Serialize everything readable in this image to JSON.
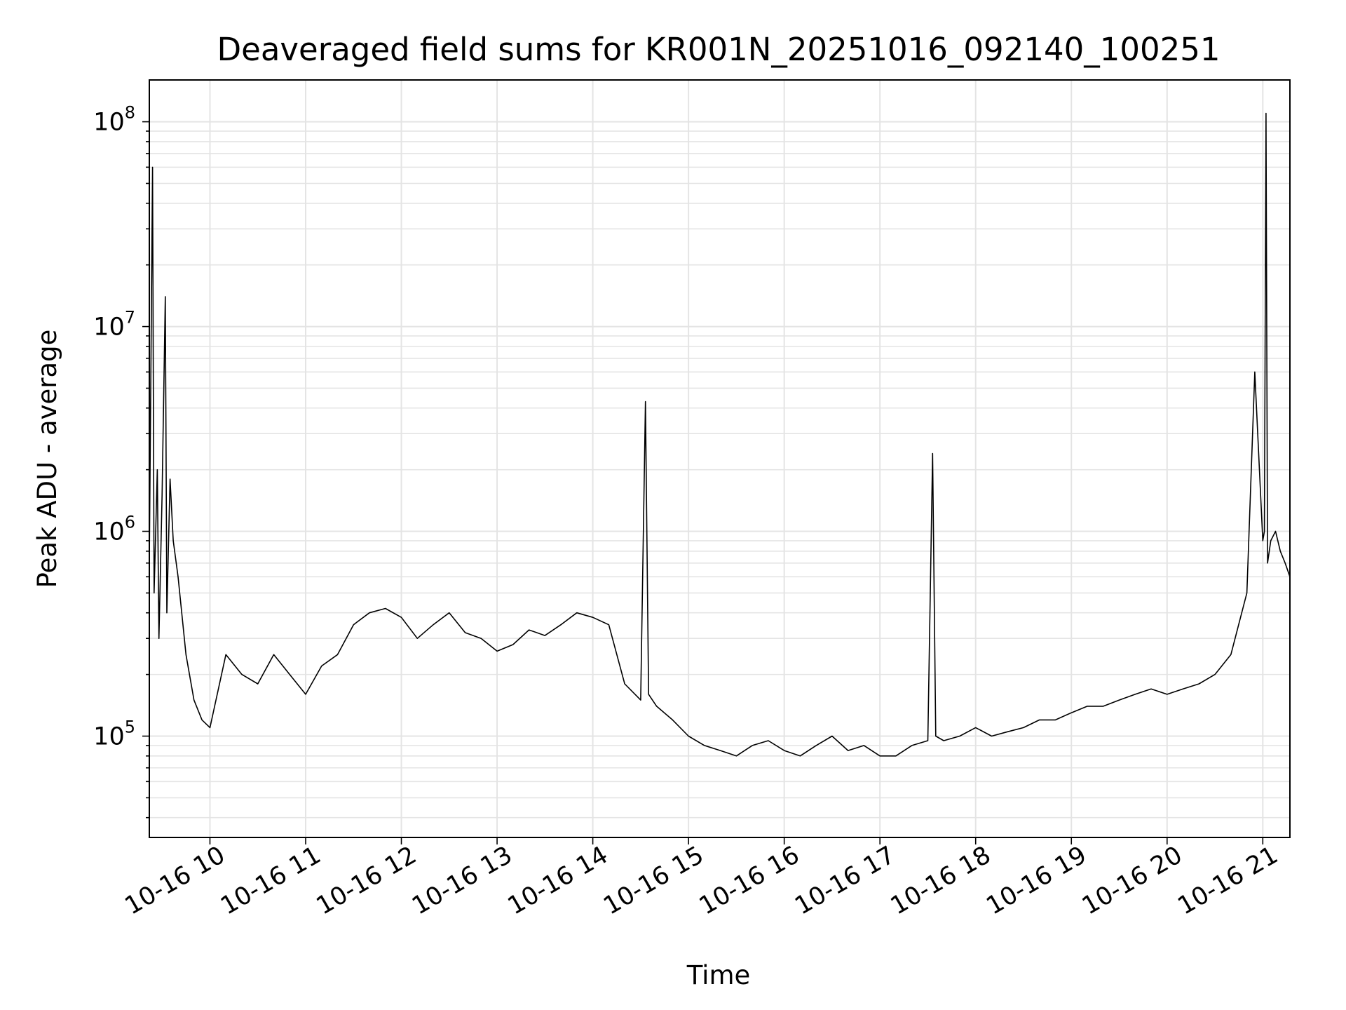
{
  "chart_data": {
    "type": "line",
    "title": "Deaveraged field sums for KR001N_20251016_092140_100251",
    "xlabel": "Time",
    "ylabel": "Peak ADU - average",
    "yscale": "log",
    "ylim": [
      32000,
      160000000
    ],
    "xlim": [
      "10-16 09:22",
      "10-16 21:17"
    ],
    "grid": true,
    "line_color": "#000000",
    "x_ticks": [
      "10-16 10",
      "10-16 11",
      "10-16 12",
      "10-16 13",
      "10-16 14",
      "10-16 15",
      "10-16 16",
      "10-16 17",
      "10-16 18",
      "10-16 19",
      "10-16 20",
      "10-16 21"
    ],
    "y_ticks": [
      {
        "base": "10",
        "exp": "5"
      },
      {
        "base": "10",
        "exp": "6"
      },
      {
        "base": "10",
        "exp": "7"
      },
      {
        "base": "10",
        "exp": "8"
      }
    ],
    "series": [
      {
        "x": [
          "10-16 09:22",
          "10-16 09:24",
          "10-16 09:25",
          "10-16 09:27",
          "10-16 09:28",
          "10-16 09:30",
          "10-16 09:32",
          "10-16 09:33",
          "10-16 09:35",
          "10-16 09:37",
          "10-16 09:40",
          "10-16 09:45",
          "10-16 09:50",
          "10-16 09:55",
          "10-16 10:00",
          "10-16 10:10",
          "10-16 10:20",
          "10-16 10:30",
          "10-16 10:40",
          "10-16 10:50",
          "10-16 11:00",
          "10-16 11:10",
          "10-16 11:20",
          "10-16 11:30",
          "10-16 11:40",
          "10-16 11:50",
          "10-16 12:00",
          "10-16 12:10",
          "10-16 12:20",
          "10-16 12:30",
          "10-16 12:40",
          "10-16 12:50",
          "10-16 13:00",
          "10-16 13:10",
          "10-16 13:20",
          "10-16 13:30",
          "10-16 13:40",
          "10-16 13:50",
          "10-16 14:00",
          "10-16 14:10",
          "10-16 14:20",
          "10-16 14:30",
          "10-16 14:33",
          "10-16 14:35",
          "10-16 14:40",
          "10-16 14:50",
          "10-16 15:00",
          "10-16 15:10",
          "10-16 15:20",
          "10-16 15:30",
          "10-16 15:40",
          "10-16 15:50",
          "10-16 16:00",
          "10-16 16:10",
          "10-16 16:20",
          "10-16 16:30",
          "10-16 16:40",
          "10-16 16:50",
          "10-16 17:00",
          "10-16 17:10",
          "10-16 17:20",
          "10-16 17:30",
          "10-16 17:33",
          "10-16 17:35",
          "10-16 17:40",
          "10-16 17:50",
          "10-16 18:00",
          "10-16 18:10",
          "10-16 18:20",
          "10-16 18:30",
          "10-16 18:40",
          "10-16 18:50",
          "10-16 19:00",
          "10-16 19:10",
          "10-16 19:20",
          "10-16 19:30",
          "10-16 19:40",
          "10-16 19:50",
          "10-16 20:00",
          "10-16 20:10",
          "10-16 20:20",
          "10-16 20:30",
          "10-16 20:40",
          "10-16 20:50",
          "10-16 20:55",
          "10-16 21:00",
          "10-16 21:01",
          "10-16 21:02",
          "10-16 21:03",
          "10-16 21:05",
          "10-16 21:08",
          "10-16 21:11",
          "10-16 21:14",
          "10-16 21:17"
        ],
        "y": [
          700000,
          60000000,
          500000,
          2000000,
          300000,
          1500000,
          14000000,
          400000,
          1800000,
          900000,
          600000,
          250000,
          150000,
          120000,
          110000,
          250000,
          200000,
          180000,
          250000,
          200000,
          160000,
          220000,
          250000,
          350000,
          400000,
          420000,
          380000,
          300000,
          350000,
          400000,
          320000,
          300000,
          260000,
          280000,
          330000,
          310000,
          350000,
          400000,
          380000,
          350000,
          180000,
          150000,
          4300000,
          160000,
          140000,
          120000,
          100000,
          90000,
          85000,
          80000,
          90000,
          95000,
          85000,
          80000,
          90000,
          100000,
          85000,
          90000,
          80000,
          80000,
          90000,
          95000,
          2400000,
          100000,
          95000,
          100000,
          110000,
          100000,
          105000,
          110000,
          120000,
          120000,
          130000,
          140000,
          140000,
          150000,
          160000,
          170000,
          160000,
          170000,
          180000,
          200000,
          250000,
          500000,
          6000000,
          900000,
          1000000,
          110000000,
          700000,
          900000,
          1000000,
          800000,
          700000,
          600000
        ]
      }
    ]
  }
}
